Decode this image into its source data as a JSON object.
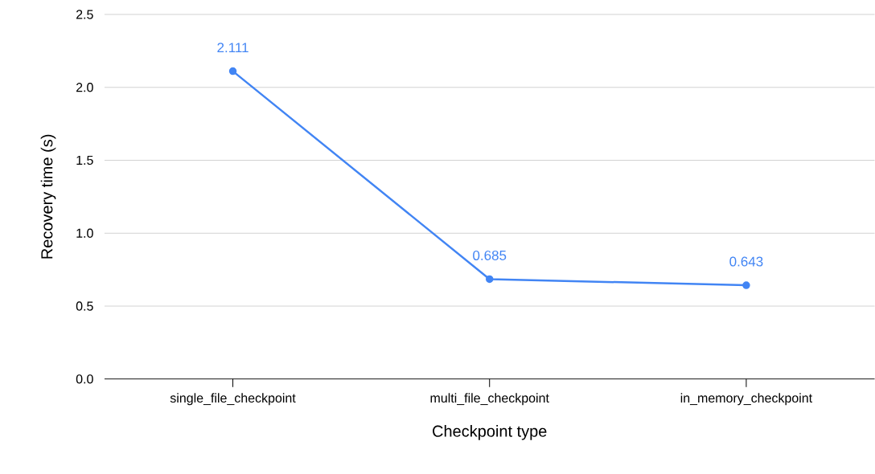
{
  "chart_data": {
    "type": "line",
    "xlabel": "Checkpoint type",
    "ylabel": "Recovery time (s)",
    "categories": [
      "single_file_checkpoint",
      "multi_file_checkpoint",
      "in_memory_checkpoint"
    ],
    "values": [
      2.111,
      0.685,
      0.643
    ],
    "color": "#4285f4",
    "marker": "circle",
    "line_style": "solid",
    "data_labels": true,
    "grid": "y",
    "ylim": [
      0,
      2.5
    ],
    "yticks": [
      {
        "value": 0,
        "label": "0.0"
      },
      0.5,
      {
        "value": 1,
        "label": "1.0"
      },
      1.5,
      {
        "value": 2,
        "label": "2.0"
      },
      2.5
    ]
  }
}
